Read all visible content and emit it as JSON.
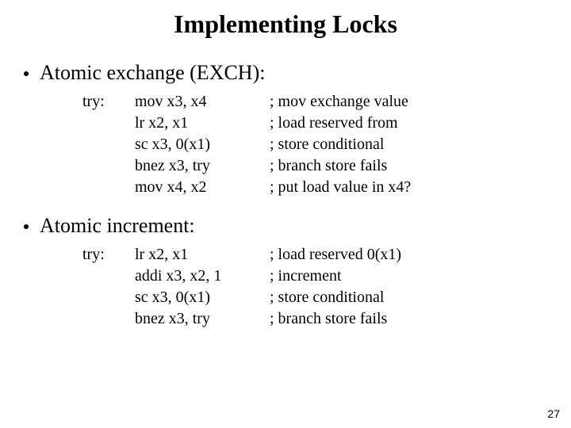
{
  "title": "Implementing Locks",
  "sections": [
    {
      "heading": "Atomic exchange (EXCH):",
      "label": "try:",
      "rows": [
        {
          "instr": "mov x3, x4",
          "comment": "; mov exchange value"
        },
        {
          "instr": "lr x2, x1",
          "comment": "; load reserved from"
        },
        {
          "instr": "sc x3, 0(x1)",
          "comment": "; store conditional"
        },
        {
          "instr": "bnez x3, try",
          "comment": "; branch store fails"
        },
        {
          "instr": "mov x4, x2",
          "comment": "; put load value in x4?"
        }
      ]
    },
    {
      "heading": "Atomic increment:",
      "label": "try:",
      "rows": [
        {
          "instr": "lr x2, x1",
          "comment": "; load reserved 0(x1)"
        },
        {
          "instr": "addi x3, x2, 1",
          "comment": "; increment"
        },
        {
          "instr": "sc x3, 0(x1)",
          "comment": "; store conditional"
        },
        {
          "instr": "bnez x3, try",
          "comment": "; branch store fails"
        }
      ]
    }
  ],
  "page_number": "27"
}
